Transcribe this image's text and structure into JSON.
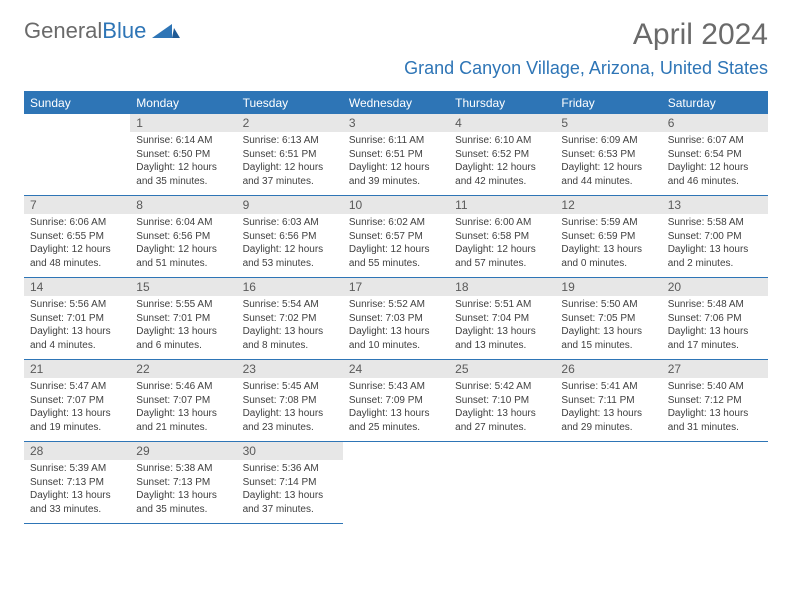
{
  "brand": {
    "part1": "General",
    "part2": "Blue"
  },
  "header": {
    "month_title": "April 2024",
    "location": "Grand Canyon Village, Arizona, United States"
  },
  "colors": {
    "accent": "#2e75b6",
    "text": "#404040",
    "muted": "#6a6a6a",
    "daynum_bg": "#e7e7e7",
    "background": "#ffffff"
  },
  "layout": {
    "columns": 7,
    "start_offset": 1
  },
  "weekdays": [
    "Sunday",
    "Monday",
    "Tuesday",
    "Wednesday",
    "Thursday",
    "Friday",
    "Saturday"
  ],
  "days": [
    {
      "n": "1",
      "sunrise": "6:14 AM",
      "sunset": "6:50 PM",
      "daylight": "12 hours and 35 minutes."
    },
    {
      "n": "2",
      "sunrise": "6:13 AM",
      "sunset": "6:51 PM",
      "daylight": "12 hours and 37 minutes."
    },
    {
      "n": "3",
      "sunrise": "6:11 AM",
      "sunset": "6:51 PM",
      "daylight": "12 hours and 39 minutes."
    },
    {
      "n": "4",
      "sunrise": "6:10 AM",
      "sunset": "6:52 PM",
      "daylight": "12 hours and 42 minutes."
    },
    {
      "n": "5",
      "sunrise": "6:09 AM",
      "sunset": "6:53 PM",
      "daylight": "12 hours and 44 minutes."
    },
    {
      "n": "6",
      "sunrise": "6:07 AM",
      "sunset": "6:54 PM",
      "daylight": "12 hours and 46 minutes."
    },
    {
      "n": "7",
      "sunrise": "6:06 AM",
      "sunset": "6:55 PM",
      "daylight": "12 hours and 48 minutes."
    },
    {
      "n": "8",
      "sunrise": "6:04 AM",
      "sunset": "6:56 PM",
      "daylight": "12 hours and 51 minutes."
    },
    {
      "n": "9",
      "sunrise": "6:03 AM",
      "sunset": "6:56 PM",
      "daylight": "12 hours and 53 minutes."
    },
    {
      "n": "10",
      "sunrise": "6:02 AM",
      "sunset": "6:57 PM",
      "daylight": "12 hours and 55 minutes."
    },
    {
      "n": "11",
      "sunrise": "6:00 AM",
      "sunset": "6:58 PM",
      "daylight": "12 hours and 57 minutes."
    },
    {
      "n": "12",
      "sunrise": "5:59 AM",
      "sunset": "6:59 PM",
      "daylight": "13 hours and 0 minutes."
    },
    {
      "n": "13",
      "sunrise": "5:58 AM",
      "sunset": "7:00 PM",
      "daylight": "13 hours and 2 minutes."
    },
    {
      "n": "14",
      "sunrise": "5:56 AM",
      "sunset": "7:01 PM",
      "daylight": "13 hours and 4 minutes."
    },
    {
      "n": "15",
      "sunrise": "5:55 AM",
      "sunset": "7:01 PM",
      "daylight": "13 hours and 6 minutes."
    },
    {
      "n": "16",
      "sunrise": "5:54 AM",
      "sunset": "7:02 PM",
      "daylight": "13 hours and 8 minutes."
    },
    {
      "n": "17",
      "sunrise": "5:52 AM",
      "sunset": "7:03 PM",
      "daylight": "13 hours and 10 minutes."
    },
    {
      "n": "18",
      "sunrise": "5:51 AM",
      "sunset": "7:04 PM",
      "daylight": "13 hours and 13 minutes."
    },
    {
      "n": "19",
      "sunrise": "5:50 AM",
      "sunset": "7:05 PM",
      "daylight": "13 hours and 15 minutes."
    },
    {
      "n": "20",
      "sunrise": "5:48 AM",
      "sunset": "7:06 PM",
      "daylight": "13 hours and 17 minutes."
    },
    {
      "n": "21",
      "sunrise": "5:47 AM",
      "sunset": "7:07 PM",
      "daylight": "13 hours and 19 minutes."
    },
    {
      "n": "22",
      "sunrise": "5:46 AM",
      "sunset": "7:07 PM",
      "daylight": "13 hours and 21 minutes."
    },
    {
      "n": "23",
      "sunrise": "5:45 AM",
      "sunset": "7:08 PM",
      "daylight": "13 hours and 23 minutes."
    },
    {
      "n": "24",
      "sunrise": "5:43 AM",
      "sunset": "7:09 PM",
      "daylight": "13 hours and 25 minutes."
    },
    {
      "n": "25",
      "sunrise": "5:42 AM",
      "sunset": "7:10 PM",
      "daylight": "13 hours and 27 minutes."
    },
    {
      "n": "26",
      "sunrise": "5:41 AM",
      "sunset": "7:11 PM",
      "daylight": "13 hours and 29 minutes."
    },
    {
      "n": "27",
      "sunrise": "5:40 AM",
      "sunset": "7:12 PM",
      "daylight": "13 hours and 31 minutes."
    },
    {
      "n": "28",
      "sunrise": "5:39 AM",
      "sunset": "7:13 PM",
      "daylight": "13 hours and 33 minutes."
    },
    {
      "n": "29",
      "sunrise": "5:38 AM",
      "sunset": "7:13 PM",
      "daylight": "13 hours and 35 minutes."
    },
    {
      "n": "30",
      "sunrise": "5:36 AM",
      "sunset": "7:14 PM",
      "daylight": "13 hours and 37 minutes."
    }
  ],
  "labels": {
    "sunrise": "Sunrise:",
    "sunset": "Sunset:",
    "daylight": "Daylight:"
  }
}
